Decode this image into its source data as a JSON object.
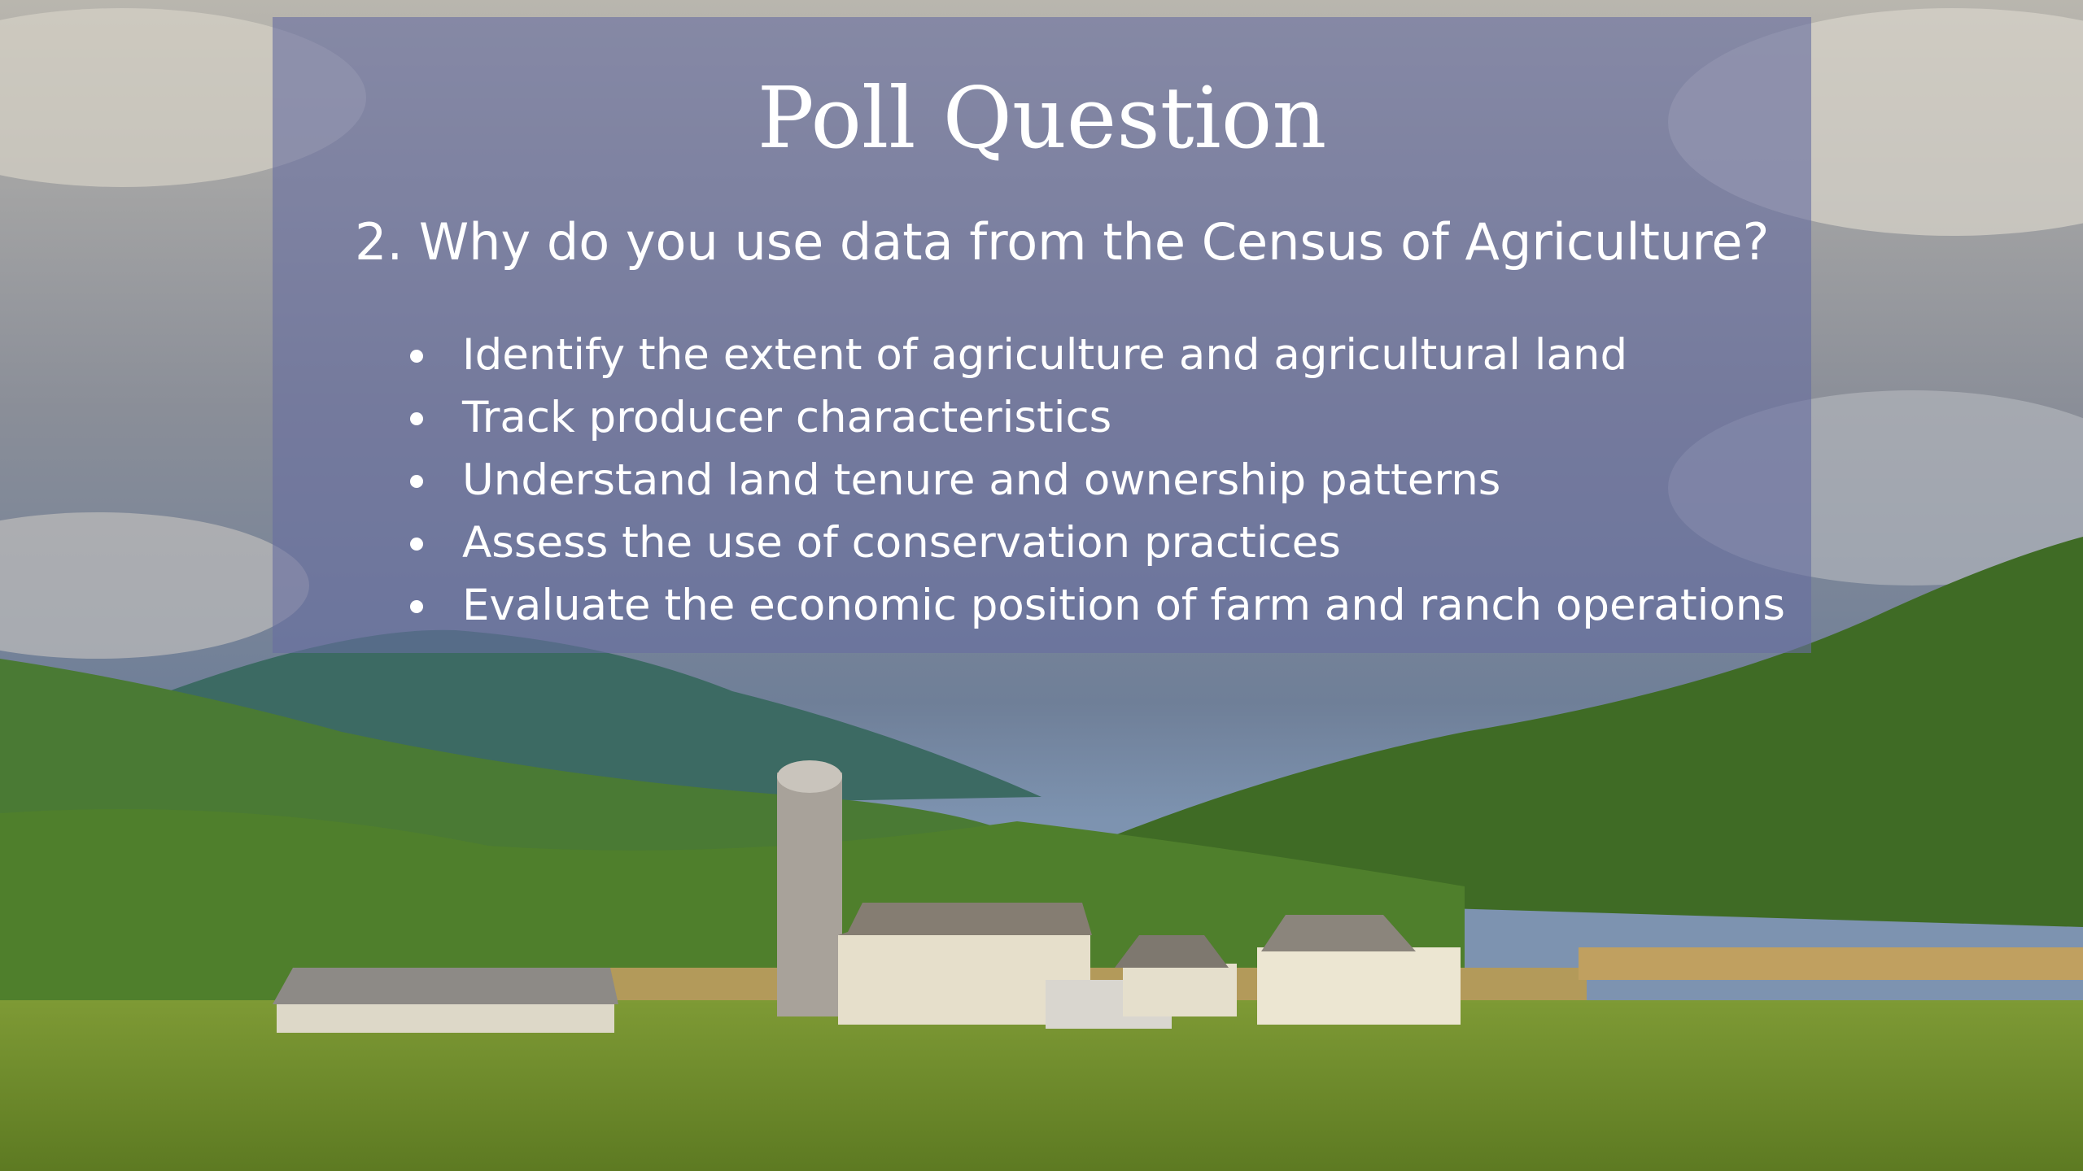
{
  "slide": {
    "title": "Poll Question",
    "question": "2. Why do you use data from the Census of Agriculture?",
    "bullets": [
      "Identify the extent of agriculture and agricultural land",
      "Track producer characteristics",
      "Understand land tenure and ownership patterns",
      "Assess the use of conservation practices",
      "Evaluate the economic position of farm and ranch operations"
    ]
  }
}
